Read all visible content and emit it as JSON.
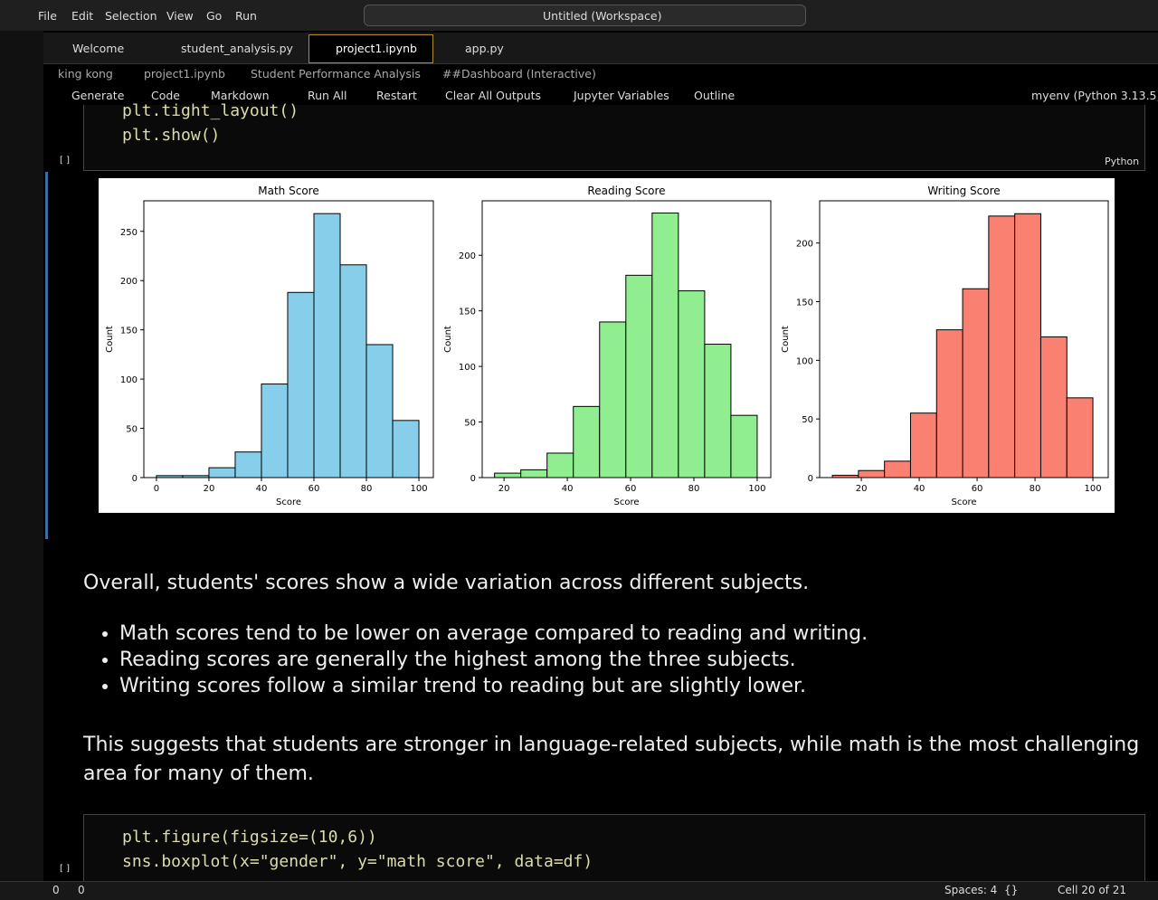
{
  "title_bar": {
    "menu": [
      "File",
      "Edit",
      "Selection",
      "View",
      "Go",
      "Run"
    ],
    "search": "Untitled (Workspace)"
  },
  "tabs": [
    "Welcome",
    "student_analysis.py",
    "project1.ipynb",
    "app.py"
  ],
  "breadcrumb": [
    "king kong",
    "project1.ipynb",
    "Student Performance Analysis",
    "##Dashboard (Interactive)"
  ],
  "toolbar": [
    "Generate",
    "Code",
    "Markdown",
    "Run All",
    "Restart",
    "Clear All Outputs",
    "Jupyter Variables",
    "Outline"
  ],
  "kernel": "myenv (Python 3.13.5)",
  "cell1": {
    "lines": [
      "plt.tight_layout()",
      "plt.show()"
    ],
    "language": "Python",
    "run_label": "[ ]"
  },
  "markdown": {
    "intro": "Overall, students' scores show a wide variation across different subjects.",
    "bullets": [
      "Math scores tend to be lower on average compared to reading and writing.",
      "Reading scores are generally the highest among the three subjects.",
      "Writing scores follow a similar trend to reading but are slightly lower."
    ],
    "conclusion": "This suggests that students are stronger in language-related subjects, while math is the most challenging area for many of them."
  },
  "cell2": {
    "lines": [
      "plt.figure(figsize=(10,6))",
      "sns.boxplot(x=\"gender\", y=\"math score\", data=df)"
    ],
    "run_label": "[ ]"
  },
  "status_bar": {
    "errors": "0",
    "warnings": "0",
    "spaces": "Spaces: 4",
    "braces": "{}",
    "cell": "Cell 20 of 21"
  },
  "chart_data": [
    {
      "type": "histogram",
      "title": "Math Score",
      "xlabel": "Score",
      "ylabel": "Count",
      "color": "#87ceeb",
      "bins": [
        0,
        10,
        20,
        30,
        40,
        50,
        60,
        70,
        80,
        90,
        100
      ],
      "values": [
        2,
        2,
        10,
        26,
        95,
        188,
        268,
        216,
        135,
        58
      ],
      "xlim": [
        -4.8,
        105.5
      ],
      "ylim": [
        0,
        281
      ],
      "xticks": [
        0,
        20,
        40,
        60,
        80,
        100
      ],
      "yticks": [
        0,
        50,
        100,
        150,
        200,
        250
      ]
    },
    {
      "type": "histogram",
      "title": "Reading Score",
      "xlabel": "Score",
      "ylabel": "Count",
      "color": "#90ee90",
      "bins": [
        17,
        25.3,
        33.6,
        41.9,
        50.2,
        58.5,
        66.8,
        75.1,
        83.4,
        91.7,
        100
      ],
      "values": [
        4,
        7,
        22,
        64,
        140,
        182,
        238,
        168,
        120,
        56
      ],
      "xlim": [
        13.1,
        104.3
      ],
      "ylim": [
        0,
        249
      ],
      "xticks": [
        20,
        40,
        60,
        80,
        100
      ],
      "yticks": [
        0,
        50,
        100,
        150,
        200
      ]
    },
    {
      "type": "histogram",
      "title": "Writing Score",
      "xlabel": "Score",
      "ylabel": "Count",
      "color": "#fa8072",
      "bins": [
        10,
        19,
        28,
        37,
        46,
        55,
        64,
        73,
        82,
        91,
        100
      ],
      "values": [
        2,
        6,
        14,
        55,
        126,
        161,
        223,
        225,
        120,
        68
      ],
      "xlim": [
        5.6,
        105.3
      ],
      "ylim": [
        0,
        236
      ],
      "xticks": [
        20,
        40,
        60,
        80,
        100
      ],
      "yticks": [
        0,
        50,
        100,
        150,
        200
      ]
    }
  ]
}
